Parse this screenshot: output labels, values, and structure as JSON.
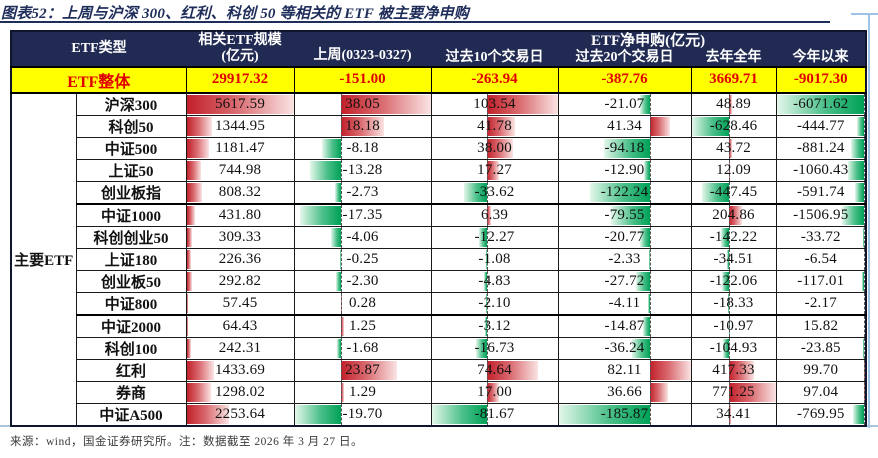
{
  "title": "图表52：上周与沪深 300、红利、科创 50 等相关的 ETF 被主要净申购",
  "header": {
    "etf_type": "ETF类型",
    "scale_line1": "相关ETF规模",
    "scale_line2": "(亿元)",
    "week": "上周(0323-0327)",
    "net_group": "ETF净申购(亿元)",
    "d10": "过去10个交易日",
    "d20": "过去20个交易日",
    "year": "去年全年",
    "ytd": "今年以来"
  },
  "total_row": {
    "label": "ETF整体",
    "values": [
      "29917.32",
      "-151.00",
      "-263.94",
      "-387.76",
      "3669.71",
      "-9017.30"
    ]
  },
  "group_label": "主要ETF",
  "rows": [
    {
      "name": "沪深300",
      "values": [
        5617.59,
        38.05,
        103.54,
        -21.07,
        48.89,
        -6071.62
      ]
    },
    {
      "name": "科创50",
      "values": [
        1344.95,
        18.18,
        41.78,
        41.34,
        -628.46,
        -444.77
      ]
    },
    {
      "name": "中证500",
      "values": [
        1181.47,
        -8.18,
        38.0,
        -94.18,
        43.72,
        -881.24
      ]
    },
    {
      "name": "上证50",
      "values": [
        744.98,
        -13.28,
        17.27,
        -12.9,
        12.09,
        -1060.43
      ]
    },
    {
      "name": "创业板指",
      "values": [
        808.32,
        -2.73,
        -33.62,
        -122.24,
        -447.45,
        -591.74
      ]
    },
    {
      "name": "中证1000",
      "values": [
        431.8,
        -17.35,
        6.39,
        -79.55,
        204.86,
        -1506.95
      ]
    },
    {
      "name": "科创创业50",
      "values": [
        309.33,
        -4.06,
        -12.27,
        -20.77,
        -142.22,
        -33.72
      ]
    },
    {
      "name": "上证180",
      "values": [
        226.36,
        -0.25,
        -1.08,
        -2.33,
        -34.51,
        -6.54
      ]
    },
    {
      "name": "创业板50",
      "values": [
        292.82,
        -2.3,
        -4.83,
        -27.72,
        -122.06,
        -117.01
      ]
    },
    {
      "name": "中证800",
      "values": [
        57.45,
        0.28,
        -2.1,
        -4.11,
        -18.33,
        -2.17
      ]
    },
    {
      "name": "中证2000",
      "values": [
        64.43,
        1.25,
        -3.12,
        -14.87,
        -10.97,
        15.82
      ]
    },
    {
      "name": "科创100",
      "values": [
        242.31,
        -1.68,
        -16.73,
        -36.24,
        -104.93,
        -23.85
      ]
    },
    {
      "name": "红利",
      "values": [
        1433.69,
        23.87,
        74.64,
        82.11,
        417.33,
        99.7
      ]
    },
    {
      "name": "券商",
      "values": [
        1298.02,
        1.29,
        17.0,
        36.66,
        771.25,
        97.04
      ]
    },
    {
      "name": "中证A500",
      "values": [
        2253.64,
        -19.7,
        -81.67,
        -185.87,
        34.41,
        -769.95
      ]
    }
  ],
  "footer": "来源：wind，国金证券研究所。注：数据截至 2026 年 3 月 27 日。",
  "colors": {
    "header_bg": "#212a52",
    "title_text": "#1f2d5a",
    "highlight_bg": "#ffff00",
    "highlight_text": "#e00000",
    "bar_positive": "#c2202a",
    "bar_negative": "#00a157",
    "accent_blue": "#9dc3e6"
  }
}
